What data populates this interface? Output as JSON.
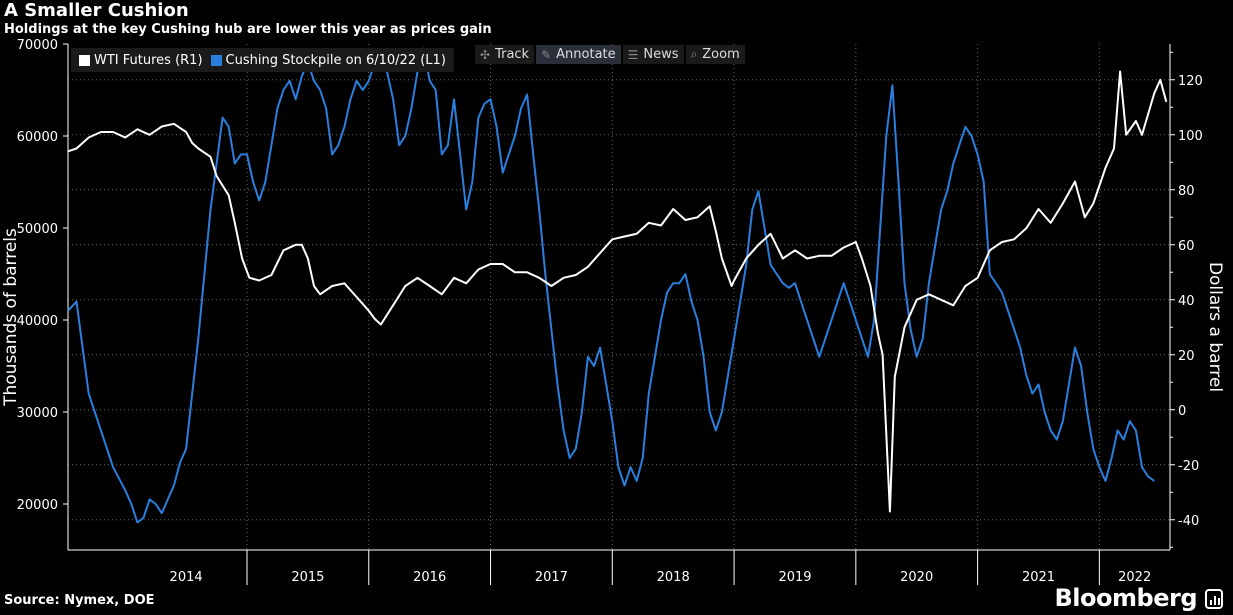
{
  "header": {
    "title": "A Smaller Cushion",
    "subtitle": "Holdings at the key Cushing hub are lower this year as prices gain"
  },
  "footer": {
    "source": "Source: Nymex, DOE",
    "brand": "Bloomberg"
  },
  "toolbar": {
    "track": "Track",
    "annotate": "Annotate",
    "news": "News",
    "zoom": "Zoom"
  },
  "legend": {
    "wti": "WTI Futures (R1)",
    "cushing": "Cushing Stockpile on 6/10/22 (L1)"
  },
  "colors": {
    "wti": "#ffffff",
    "cushing": "#2a7fde"
  },
  "chart_data": {
    "type": "line",
    "x_labels": [
      "2014",
      "2015",
      "2016",
      "2017",
      "2018",
      "2019",
      "2020",
      "2021",
      "2022"
    ],
    "x_range": [
      2013.53,
      2022.58
    ],
    "y_left": {
      "label": "Thousands of barrels",
      "range": [
        15000,
        70000
      ],
      "ticks": [
        20000,
        30000,
        40000,
        50000,
        60000,
        70000
      ]
    },
    "y_right": {
      "label": "Dollars a barrel",
      "range": [
        -51,
        133
      ],
      "ticks": [
        -40,
        -20,
        0,
        20,
        40,
        60,
        80,
        100,
        120
      ]
    },
    "series": [
      {
        "name": "WTI Futures (R1)",
        "axis": "right",
        "points": [
          [
            2013.53,
            94
          ],
          [
            2013.6,
            95
          ],
          [
            2013.7,
            99
          ],
          [
            2013.8,
            101
          ],
          [
            2013.9,
            101
          ],
          [
            2014.0,
            99
          ],
          [
            2014.1,
            102
          ],
          [
            2014.2,
            100
          ],
          [
            2014.3,
            103
          ],
          [
            2014.4,
            104
          ],
          [
            2014.5,
            101
          ],
          [
            2014.55,
            97
          ],
          [
            2014.6,
            95
          ],
          [
            2014.7,
            92
          ],
          [
            2014.75,
            85
          ],
          [
            2014.85,
            78
          ],
          [
            2014.9,
            68
          ],
          [
            2014.96,
            55
          ],
          [
            2015.02,
            48
          ],
          [
            2015.1,
            47
          ],
          [
            2015.2,
            49
          ],
          [
            2015.3,
            58
          ],
          [
            2015.4,
            60
          ],
          [
            2015.45,
            60
          ],
          [
            2015.5,
            55
          ],
          [
            2015.55,
            45
          ],
          [
            2015.6,
            42
          ],
          [
            2015.7,
            45
          ],
          [
            2015.8,
            46
          ],
          [
            2015.9,
            41
          ],
          [
            2016.0,
            36
          ],
          [
            2016.05,
            33
          ],
          [
            2016.1,
            31
          ],
          [
            2016.2,
            38
          ],
          [
            2016.3,
            45
          ],
          [
            2016.4,
            48
          ],
          [
            2016.5,
            45
          ],
          [
            2016.6,
            42
          ],
          [
            2016.7,
            48
          ],
          [
            2016.8,
            46
          ],
          [
            2016.9,
            51
          ],
          [
            2017.0,
            53
          ],
          [
            2017.1,
            53
          ],
          [
            2017.2,
            50
          ],
          [
            2017.3,
            50
          ],
          [
            2017.4,
            48
          ],
          [
            2017.5,
            45
          ],
          [
            2017.6,
            48
          ],
          [
            2017.7,
            49
          ],
          [
            2017.8,
            52
          ],
          [
            2017.9,
            57
          ],
          [
            2018.0,
            62
          ],
          [
            2018.1,
            63
          ],
          [
            2018.2,
            64
          ],
          [
            2018.3,
            68
          ],
          [
            2018.4,
            67
          ],
          [
            2018.5,
            73
          ],
          [
            2018.6,
            69
          ],
          [
            2018.7,
            70
          ],
          [
            2018.8,
            74
          ],
          [
            2018.85,
            65
          ],
          [
            2018.9,
            55
          ],
          [
            2018.98,
            45
          ],
          [
            2019.0,
            47
          ],
          [
            2019.1,
            55
          ],
          [
            2019.2,
            60
          ],
          [
            2019.3,
            64
          ],
          [
            2019.4,
            55
          ],
          [
            2019.5,
            58
          ],
          [
            2019.6,
            55
          ],
          [
            2019.7,
            56
          ],
          [
            2019.8,
            56
          ],
          [
            2019.9,
            59
          ],
          [
            2020.0,
            61
          ],
          [
            2020.05,
            55
          ],
          [
            2020.12,
            45
          ],
          [
            2020.18,
            28
          ],
          [
            2020.22,
            20
          ],
          [
            2020.28,
            -37
          ],
          [
            2020.32,
            12
          ],
          [
            2020.4,
            30
          ],
          [
            2020.5,
            40
          ],
          [
            2020.6,
            42
          ],
          [
            2020.7,
            40
          ],
          [
            2020.8,
            38
          ],
          [
            2020.9,
            45
          ],
          [
            2021.0,
            48
          ],
          [
            2021.1,
            58
          ],
          [
            2021.2,
            61
          ],
          [
            2021.3,
            62
          ],
          [
            2021.4,
            66
          ],
          [
            2021.5,
            73
          ],
          [
            2021.6,
            68
          ],
          [
            2021.7,
            75
          ],
          [
            2021.8,
            83
          ],
          [
            2021.88,
            70
          ],
          [
            2021.95,
            75
          ],
          [
            2022.05,
            88
          ],
          [
            2022.12,
            95
          ],
          [
            2022.17,
            123
          ],
          [
            2022.22,
            100
          ],
          [
            2022.3,
            105
          ],
          [
            2022.35,
            100
          ],
          [
            2022.45,
            115
          ],
          [
            2022.5,
            120
          ],
          [
            2022.55,
            112
          ]
        ]
      },
      {
        "name": "Cushing Stockpile on 6/10/22 (L1)",
        "axis": "left",
        "points": [
          [
            2013.53,
            41000
          ],
          [
            2013.6,
            42000
          ],
          [
            2013.7,
            32000
          ],
          [
            2013.8,
            28000
          ],
          [
            2013.9,
            24000
          ],
          [
            2014.0,
            21500
          ],
          [
            2014.05,
            20000
          ],
          [
            2014.1,
            18000
          ],
          [
            2014.15,
            18500
          ],
          [
            2014.2,
            20500
          ],
          [
            2014.25,
            20000
          ],
          [
            2014.3,
            19000
          ],
          [
            2014.35,
            20500
          ],
          [
            2014.4,
            22000
          ],
          [
            2014.45,
            24500
          ],
          [
            2014.5,
            26000
          ],
          [
            2014.55,
            32000
          ],
          [
            2014.6,
            38000
          ],
          [
            2014.65,
            45000
          ],
          [
            2014.7,
            52000
          ],
          [
            2014.75,
            57000
          ],
          [
            2014.8,
            62000
          ],
          [
            2014.85,
            61000
          ],
          [
            2014.9,
            57000
          ],
          [
            2014.95,
            58000
          ],
          [
            2015.0,
            58000
          ],
          [
            2015.05,
            55000
          ],
          [
            2015.1,
            53000
          ],
          [
            2015.15,
            55000
          ],
          [
            2015.2,
            59000
          ],
          [
            2015.25,
            63000
          ],
          [
            2015.3,
            65000
          ],
          [
            2015.35,
            66000
          ],
          [
            2015.4,
            64000
          ],
          [
            2015.45,
            66500
          ],
          [
            2015.5,
            68000
          ],
          [
            2015.55,
            66000
          ],
          [
            2015.6,
            65000
          ],
          [
            2015.65,
            63000
          ],
          [
            2015.7,
            58000
          ],
          [
            2015.75,
            59000
          ],
          [
            2015.8,
            61000
          ],
          [
            2015.85,
            64000
          ],
          [
            2015.9,
            66000
          ],
          [
            2015.95,
            65000
          ],
          [
            2016.0,
            66000
          ],
          [
            2016.05,
            68000
          ],
          [
            2016.1,
            69000
          ],
          [
            2016.15,
            67000
          ],
          [
            2016.2,
            64000
          ],
          [
            2016.25,
            59000
          ],
          [
            2016.3,
            60000
          ],
          [
            2016.35,
            63000
          ],
          [
            2016.4,
            67000
          ],
          [
            2016.45,
            69500
          ],
          [
            2016.5,
            66000
          ],
          [
            2016.55,
            65000
          ],
          [
            2016.6,
            58000
          ],
          [
            2016.65,
            59000
          ],
          [
            2016.7,
            64000
          ],
          [
            2016.75,
            58000
          ],
          [
            2016.8,
            52000
          ],
          [
            2016.85,
            55000
          ],
          [
            2016.9,
            62000
          ],
          [
            2016.95,
            63500
          ],
          [
            2017.0,
            64000
          ],
          [
            2017.05,
            61000
          ],
          [
            2017.1,
            56000
          ],
          [
            2017.15,
            58000
          ],
          [
            2017.2,
            60000
          ],
          [
            2017.25,
            63000
          ],
          [
            2017.3,
            64500
          ],
          [
            2017.35,
            58000
          ],
          [
            2017.4,
            52000
          ],
          [
            2017.45,
            45000
          ],
          [
            2017.5,
            39000
          ],
          [
            2017.55,
            33000
          ],
          [
            2017.6,
            28000
          ],
          [
            2017.65,
            25000
          ],
          [
            2017.7,
            26000
          ],
          [
            2017.75,
            30000
          ],
          [
            2017.8,
            36000
          ],
          [
            2017.85,
            35000
          ],
          [
            2017.9,
            37000
          ],
          [
            2017.95,
            33000
          ],
          [
            2018.0,
            29000
          ],
          [
            2018.05,
            24000
          ],
          [
            2018.1,
            22000
          ],
          [
            2018.15,
            24000
          ],
          [
            2018.2,
            22500
          ],
          [
            2018.25,
            25000
          ],
          [
            2018.3,
            32000
          ],
          [
            2018.35,
            36000
          ],
          [
            2018.4,
            40000
          ],
          [
            2018.45,
            43000
          ],
          [
            2018.5,
            44000
          ],
          [
            2018.55,
            44000
          ],
          [
            2018.6,
            45000
          ],
          [
            2018.65,
            42000
          ],
          [
            2018.7,
            40000
          ],
          [
            2018.75,
            36000
          ],
          [
            2018.8,
            30000
          ],
          [
            2018.85,
            28000
          ],
          [
            2018.9,
            30000
          ],
          [
            2018.95,
            34000
          ],
          [
            2019.0,
            38000
          ],
          [
            2019.05,
            42000
          ],
          [
            2019.1,
            46000
          ],
          [
            2019.15,
            52000
          ],
          [
            2019.2,
            54000
          ],
          [
            2019.25,
            50000
          ],
          [
            2019.3,
            46000
          ],
          [
            2019.35,
            45000
          ],
          [
            2019.4,
            44000
          ],
          [
            2019.45,
            43500
          ],
          [
            2019.5,
            44000
          ],
          [
            2019.55,
            42000
          ],
          [
            2019.6,
            40000
          ],
          [
            2019.65,
            38000
          ],
          [
            2019.7,
            36000
          ],
          [
            2019.75,
            38000
          ],
          [
            2019.8,
            40000
          ],
          [
            2019.85,
            42000
          ],
          [
            2019.9,
            44000
          ],
          [
            2019.95,
            42000
          ],
          [
            2020.0,
            40000
          ],
          [
            2020.05,
            38000
          ],
          [
            2020.1,
            36000
          ],
          [
            2020.15,
            40000
          ],
          [
            2020.2,
            50000
          ],
          [
            2020.25,
            60000
          ],
          [
            2020.3,
            65500
          ],
          [
            2020.35,
            55000
          ],
          [
            2020.4,
            44000
          ],
          [
            2020.45,
            39000
          ],
          [
            2020.5,
            36000
          ],
          [
            2020.55,
            38000
          ],
          [
            2020.6,
            44000
          ],
          [
            2020.65,
            48000
          ],
          [
            2020.7,
            52000
          ],
          [
            2020.75,
            54000
          ],
          [
            2020.8,
            57000
          ],
          [
            2020.85,
            59000
          ],
          [
            2020.9,
            61000
          ],
          [
            2020.95,
            60000
          ],
          [
            2021.0,
            58000
          ],
          [
            2021.05,
            55000
          ],
          [
            2021.1,
            45000
          ],
          [
            2021.15,
            44000
          ],
          [
            2021.2,
            43000
          ],
          [
            2021.25,
            41000
          ],
          [
            2021.3,
            39000
          ],
          [
            2021.35,
            37000
          ],
          [
            2021.4,
            34000
          ],
          [
            2021.45,
            32000
          ],
          [
            2021.5,
            33000
          ],
          [
            2021.55,
            30000
          ],
          [
            2021.6,
            28000
          ],
          [
            2021.65,
            27000
          ],
          [
            2021.7,
            29000
          ],
          [
            2021.75,
            33000
          ],
          [
            2021.8,
            37000
          ],
          [
            2021.85,
            35000
          ],
          [
            2021.9,
            30000
          ],
          [
            2021.95,
            26000
          ],
          [
            2022.0,
            24000
          ],
          [
            2022.05,
            22500
          ],
          [
            2022.1,
            25000
          ],
          [
            2022.15,
            28000
          ],
          [
            2022.2,
            27000
          ],
          [
            2022.25,
            29000
          ],
          [
            2022.3,
            28000
          ],
          [
            2022.35,
            24000
          ],
          [
            2022.4,
            23000
          ],
          [
            2022.45,
            22500
          ]
        ]
      }
    ]
  }
}
